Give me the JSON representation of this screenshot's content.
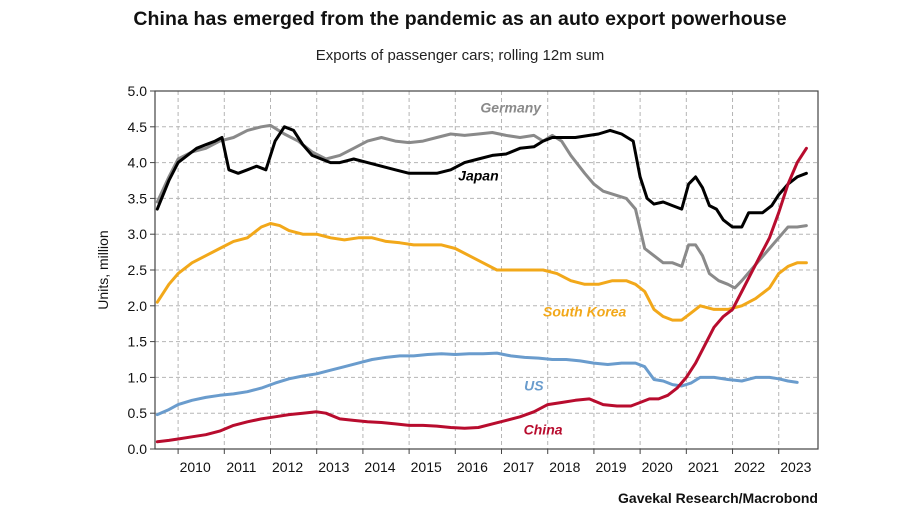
{
  "header": {
    "title": "China has emerged from the pandemic as an auto export powerhouse",
    "subtitle": "Exports of passenger cars; rolling 12m sum",
    "source": "Gavekal Research/Macrobond"
  },
  "chart_data": {
    "type": "line",
    "title": "China has emerged from the pandemic as an auto export powerhouse",
    "subtitle": "Exports of passenger cars; rolling 12m sum",
    "xlabel": "",
    "ylabel": "Units, million",
    "xlim": [
      2009.5,
      2023.85
    ],
    "ylim": [
      0,
      5
    ],
    "x_ticks": [
      "2010",
      "2011",
      "2012",
      "2013",
      "2014",
      "2015",
      "2016",
      "2017",
      "2018",
      "2019",
      "2020",
      "2021",
      "2022",
      "2023"
    ],
    "y_ticks": [
      "0.0",
      "0.5",
      "1.0",
      "1.5",
      "2.0",
      "2.5",
      "3.0",
      "3.5",
      "4.0",
      "4.5",
      "5.0"
    ],
    "grid": true,
    "legend": "direct labels",
    "series": [
      {
        "name": "Germany",
        "color": "#8a8a8a",
        "label_at": [
          2017.2,
          4.7
        ],
        "x": [
          2009.55,
          2009.8,
          2010.0,
          2010.3,
          2010.6,
          2010.9,
          2011.2,
          2011.5,
          2011.8,
          2012.0,
          2012.3,
          2012.6,
          2012.9,
          2013.2,
          2013.5,
          2013.8,
          2014.1,
          2014.4,
          2014.7,
          2015.0,
          2015.3,
          2015.6,
          2015.9,
          2016.2,
          2016.5,
          2016.8,
          2017.1,
          2017.4,
          2017.7,
          2017.9,
          2018.1,
          2018.3,
          2018.5,
          2018.8,
          2019.0,
          2019.2,
          2019.45,
          2019.7,
          2019.9,
          2020.1,
          2020.3,
          2020.5,
          2020.7,
          2020.9,
          2021.05,
          2021.2,
          2021.35,
          2021.5,
          2021.7,
          2021.9,
          2022.05,
          2022.2,
          2022.4,
          2022.6,
          2022.8,
          2023.0,
          2023.2,
          2023.4,
          2023.6
        ],
        "y": [
          3.45,
          3.8,
          4.05,
          4.15,
          4.2,
          4.3,
          4.35,
          4.45,
          4.5,
          4.52,
          4.4,
          4.3,
          4.15,
          4.05,
          4.1,
          4.2,
          4.3,
          4.35,
          4.3,
          4.28,
          4.3,
          4.35,
          4.4,
          4.38,
          4.4,
          4.42,
          4.38,
          4.35,
          4.38,
          4.3,
          4.38,
          4.3,
          4.1,
          3.85,
          3.7,
          3.6,
          3.55,
          3.5,
          3.35,
          2.8,
          2.7,
          2.6,
          2.6,
          2.55,
          2.85,
          2.85,
          2.7,
          2.45,
          2.35,
          2.3,
          2.25,
          2.35,
          2.5,
          2.65,
          2.8,
          2.95,
          3.1,
          3.1,
          3.12
        ]
      },
      {
        "name": "Japan",
        "color": "#000000",
        "label_at": [
          2016.5,
          3.75
        ],
        "x": [
          2009.55,
          2009.8,
          2010.0,
          2010.2,
          2010.4,
          2010.6,
          2010.8,
          2010.95,
          2011.1,
          2011.3,
          2011.5,
          2011.7,
          2011.9,
          2012.1,
          2012.3,
          2012.5,
          2012.7,
          2012.9,
          2013.1,
          2013.3,
          2013.5,
          2013.8,
          2014.1,
          2014.4,
          2014.7,
          2015.0,
          2015.3,
          2015.6,
          2015.9,
          2016.2,
          2016.5,
          2016.8,
          2017.1,
          2017.4,
          2017.7,
          2017.9,
          2018.1,
          2018.3,
          2018.6,
          2018.9,
          2019.1,
          2019.35,
          2019.6,
          2019.85,
          2020.0,
          2020.15,
          2020.3,
          2020.5,
          2020.7,
          2020.9,
          2021.05,
          2021.2,
          2021.35,
          2021.5,
          2021.65,
          2021.8,
          2022.0,
          2022.2,
          2022.35,
          2022.5,
          2022.65,
          2022.85,
          2023.0,
          2023.2,
          2023.4,
          2023.6
        ],
        "y": [
          3.35,
          3.75,
          4.0,
          4.1,
          4.2,
          4.25,
          4.3,
          4.35,
          3.9,
          3.85,
          3.9,
          3.95,
          3.9,
          4.3,
          4.5,
          4.45,
          4.25,
          4.1,
          4.05,
          4.0,
          4.0,
          4.05,
          4.0,
          3.95,
          3.9,
          3.85,
          3.85,
          3.85,
          3.9,
          4.0,
          4.05,
          4.1,
          4.12,
          4.2,
          4.22,
          4.3,
          4.35,
          4.35,
          4.35,
          4.38,
          4.4,
          4.45,
          4.4,
          4.3,
          3.8,
          3.5,
          3.42,
          3.45,
          3.4,
          3.35,
          3.7,
          3.8,
          3.65,
          3.4,
          3.35,
          3.2,
          3.1,
          3.1,
          3.3,
          3.3,
          3.3,
          3.4,
          3.55,
          3.7,
          3.8,
          3.85
        ]
      },
      {
        "name": "South Korea",
        "color": "#f2a81a",
        "label_at": [
          2018.8,
          1.85
        ],
        "x": [
          2009.55,
          2009.8,
          2010.0,
          2010.3,
          2010.6,
          2010.9,
          2011.2,
          2011.5,
          2011.8,
          2012.0,
          2012.2,
          2012.4,
          2012.7,
          2013.0,
          2013.3,
          2013.6,
          2013.9,
          2014.2,
          2014.5,
          2014.8,
          2015.1,
          2015.4,
          2015.7,
          2016.0,
          2016.3,
          2016.6,
          2016.9,
          2017.2,
          2017.4,
          2017.6,
          2017.9,
          2018.2,
          2018.5,
          2018.8,
          2019.1,
          2019.4,
          2019.7,
          2019.9,
          2020.1,
          2020.3,
          2020.5,
          2020.7,
          2020.9,
          2021.1,
          2021.3,
          2021.6,
          2021.9,
          2022.2,
          2022.5,
          2022.8,
          2023.0,
          2023.2,
          2023.4,
          2023.6
        ],
        "y": [
          2.05,
          2.3,
          2.45,
          2.6,
          2.7,
          2.8,
          2.9,
          2.95,
          3.1,
          3.15,
          3.12,
          3.05,
          3.0,
          3.0,
          2.95,
          2.92,
          2.95,
          2.95,
          2.9,
          2.88,
          2.85,
          2.85,
          2.85,
          2.8,
          2.7,
          2.6,
          2.5,
          2.5,
          2.5,
          2.5,
          2.5,
          2.45,
          2.35,
          2.3,
          2.3,
          2.35,
          2.35,
          2.3,
          2.2,
          1.95,
          1.85,
          1.8,
          1.8,
          1.9,
          2.0,
          1.95,
          1.95,
          2.0,
          2.1,
          2.25,
          2.45,
          2.55,
          2.6,
          2.6
        ]
      },
      {
        "name": "US",
        "color": "#6a9ccd",
        "label_at": [
          2017.7,
          0.82
        ],
        "x": [
          2009.55,
          2009.8,
          2010.0,
          2010.3,
          2010.6,
          2010.9,
          2011.2,
          2011.5,
          2011.8,
          2012.1,
          2012.4,
          2012.7,
          2013.0,
          2013.3,
          2013.6,
          2013.9,
          2014.2,
          2014.5,
          2014.8,
          2015.1,
          2015.4,
          2015.7,
          2016.0,
          2016.3,
          2016.6,
          2016.9,
          2017.2,
          2017.5,
          2017.8,
          2018.1,
          2018.4,
          2018.7,
          2019.0,
          2019.3,
          2019.6,
          2019.9,
          2020.1,
          2020.3,
          2020.5,
          2020.7,
          2020.9,
          2021.1,
          2021.3,
          2021.6,
          2021.9,
          2022.2,
          2022.5,
          2022.8,
          2023.0,
          2023.2,
          2023.4
        ],
        "y": [
          0.48,
          0.55,
          0.62,
          0.68,
          0.72,
          0.75,
          0.77,
          0.8,
          0.85,
          0.92,
          0.98,
          1.02,
          1.05,
          1.1,
          1.15,
          1.2,
          1.25,
          1.28,
          1.3,
          1.3,
          1.32,
          1.33,
          1.32,
          1.33,
          1.33,
          1.34,
          1.3,
          1.28,
          1.27,
          1.25,
          1.25,
          1.23,
          1.2,
          1.18,
          1.2,
          1.2,
          1.15,
          0.97,
          0.95,
          0.9,
          0.88,
          0.92,
          1.0,
          1.0,
          0.97,
          0.95,
          1.0,
          1.0,
          0.98,
          0.95,
          0.93
        ]
      },
      {
        "name": "China",
        "color": "#b80c2e",
        "label_at": [
          2017.9,
          0.2
        ],
        "x": [
          2009.55,
          2009.8,
          2010.0,
          2010.3,
          2010.6,
          2010.9,
          2011.2,
          2011.5,
          2011.8,
          2012.1,
          2012.4,
          2012.7,
          2013.0,
          2013.2,
          2013.5,
          2013.8,
          2014.1,
          2014.4,
          2014.7,
          2015.0,
          2015.3,
          2015.6,
          2015.9,
          2016.2,
          2016.5,
          2016.8,
          2017.1,
          2017.4,
          2017.7,
          2018.0,
          2018.3,
          2018.6,
          2018.9,
          2019.2,
          2019.5,
          2019.8,
          2020.0,
          2020.2,
          2020.4,
          2020.6,
          2020.8,
          2021.0,
          2021.2,
          2021.4,
          2021.6,
          2021.8,
          2022.0,
          2022.2,
          2022.4,
          2022.6,
          2022.8,
          2023.0,
          2023.2,
          2023.4,
          2023.6
        ],
        "y": [
          0.1,
          0.12,
          0.14,
          0.17,
          0.2,
          0.25,
          0.33,
          0.38,
          0.42,
          0.45,
          0.48,
          0.5,
          0.52,
          0.5,
          0.42,
          0.4,
          0.38,
          0.37,
          0.35,
          0.33,
          0.33,
          0.32,
          0.3,
          0.29,
          0.3,
          0.35,
          0.4,
          0.45,
          0.52,
          0.62,
          0.65,
          0.68,
          0.7,
          0.62,
          0.6,
          0.6,
          0.65,
          0.7,
          0.7,
          0.75,
          0.85,
          1.0,
          1.2,
          1.45,
          1.7,
          1.85,
          1.95,
          2.2,
          2.45,
          2.7,
          2.95,
          3.3,
          3.7,
          4.0,
          4.2
        ]
      }
    ]
  }
}
